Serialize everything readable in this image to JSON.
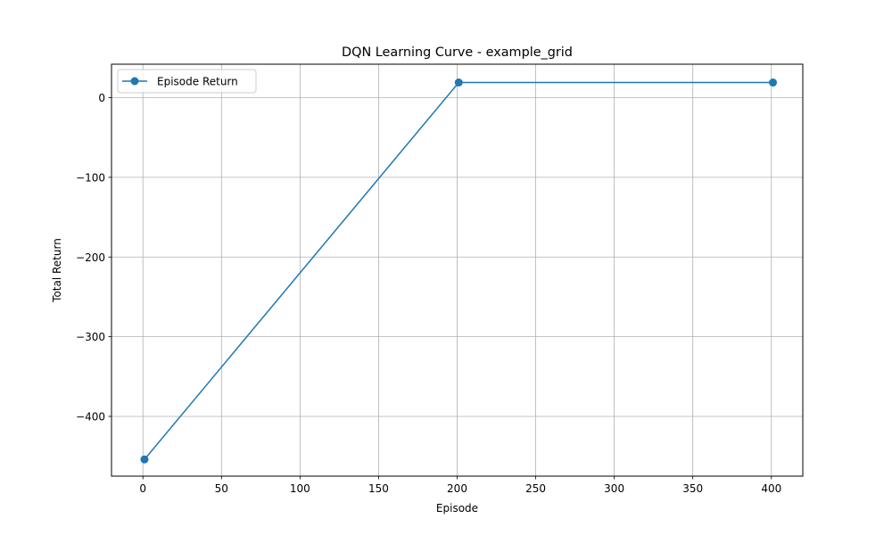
{
  "chart_data": {
    "type": "line",
    "title": "DQN Learning Curve - example_grid",
    "xlabel": "Episode",
    "ylabel": "Total Return",
    "xlim": [
      -20,
      420
    ],
    "ylim": [
      -475,
      42
    ],
    "xticks": [
      0,
      50,
      100,
      150,
      200,
      250,
      300,
      350,
      400
    ],
    "yticks": [
      0,
      -100,
      -200,
      -300,
      -400
    ],
    "xtick_labels": [
      "0",
      "50",
      "100",
      "150",
      "200",
      "250",
      "300",
      "350",
      "400"
    ],
    "ytick_labels": [
      "0",
      "−100",
      "−200",
      "−300",
      "−400"
    ],
    "grid": true,
    "legend_position": "top-left",
    "series": [
      {
        "name": "Episode Return",
        "color": "#1f77b4",
        "marker": "circle",
        "x": [
          1,
          201,
          401
        ],
        "y": [
          -454,
          19,
          19
        ]
      }
    ]
  }
}
